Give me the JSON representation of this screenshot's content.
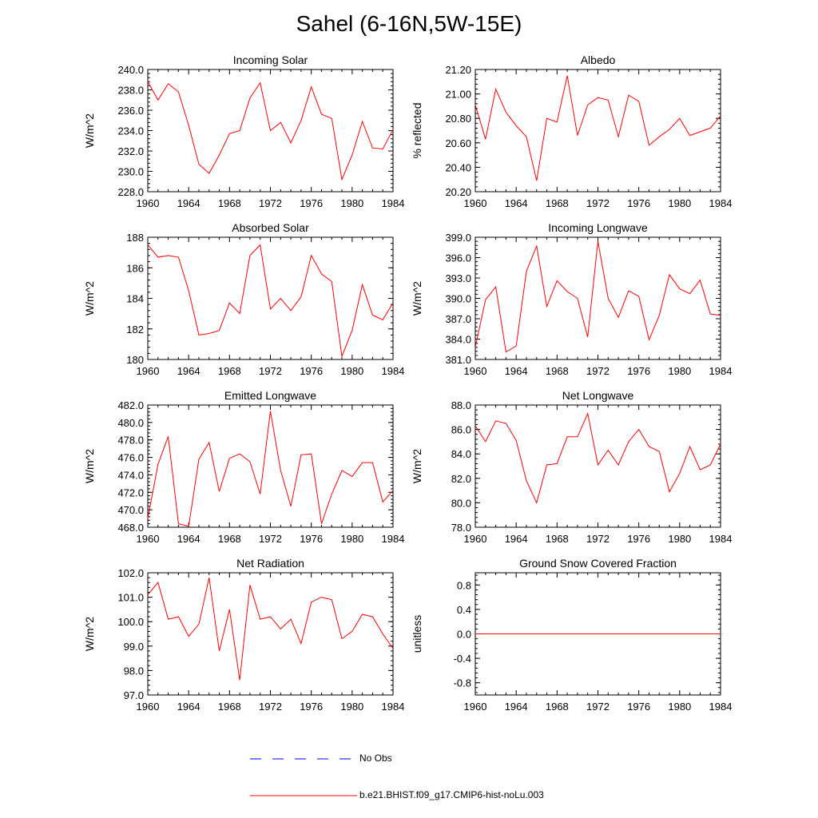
{
  "page_title": "Sahel (6-16N,5W-15E)",
  "legend": {
    "obs_label": "No Obs",
    "model_label": "b.e21.BHIST.f09_g17.CMIP6-hist-noLu.003",
    "obs_color": "#0000ff",
    "model_color": "#ff0000"
  },
  "chart_data": [
    {
      "type": "line",
      "title": "Incoming Solar",
      "ylabel": "W/m^2",
      "xlim": [
        1960,
        1984
      ],
      "ylim": [
        228,
        240
      ],
      "x_ticks": [
        "1960",
        "1964",
        "1968",
        "1972",
        "1976",
        "1980",
        "1984"
      ],
      "y_ticks": [
        "228.0",
        "230.0",
        "232.0",
        "234.0",
        "236.0",
        "238.0",
        "240.0"
      ],
      "series": [
        {
          "name": "b.e21.BHIST.f09_g17.CMIP6-hist-noLu.003",
          "x": [
            1960,
            1961,
            1962,
            1963,
            1964,
            1965,
            1966,
            1967,
            1968,
            1969,
            1970,
            1971,
            1972,
            1973,
            1974,
            1975,
            1976,
            1977,
            1978,
            1979,
            1980,
            1981,
            1982,
            1983,
            1984
          ],
          "values": [
            238.8,
            237.0,
            238.6,
            237.8,
            234.5,
            230.7,
            229.8,
            231.6,
            233.7,
            234.0,
            237.2,
            238.7,
            234.0,
            234.8,
            232.8,
            235.0,
            238.3,
            235.6,
            235.2,
            229.2,
            231.6,
            234.9,
            232.3,
            232.2,
            234.1
          ]
        }
      ]
    },
    {
      "type": "line",
      "title": "Albedo",
      "ylabel": "% reflected",
      "xlim": [
        1960,
        1984
      ],
      "ylim": [
        20.2,
        21.2
      ],
      "x_ticks": [
        "1960",
        "1964",
        "1968",
        "1972",
        "1976",
        "1980",
        "1984"
      ],
      "y_ticks": [
        "20.20",
        "20.40",
        "20.60",
        "20.80",
        "21.00",
        "21.20"
      ],
      "series": [
        {
          "name": "b.e21.BHIST.f09_g17.CMIP6-hist-noLu.003",
          "x": [
            1960,
            1961,
            1962,
            1963,
            1964,
            1965,
            1966,
            1967,
            1968,
            1969,
            1970,
            1971,
            1972,
            1973,
            1974,
            1975,
            1976,
            1977,
            1978,
            1979,
            1980,
            1981,
            1982,
            1983,
            1984
          ],
          "values": [
            20.91,
            20.63,
            21.04,
            20.85,
            20.74,
            20.65,
            20.29,
            20.8,
            20.77,
            21.15,
            20.66,
            20.91,
            20.97,
            20.95,
            20.65,
            20.99,
            20.94,
            20.58,
            20.65,
            20.71,
            20.8,
            20.66,
            20.69,
            20.72,
            20.82
          ]
        }
      ]
    },
    {
      "type": "line",
      "title": "Absorbed Solar",
      "ylabel": "W/m^2",
      "xlim": [
        1960,
        1984
      ],
      "ylim": [
        180,
        188
      ],
      "x_ticks": [
        "1960",
        "1964",
        "1968",
        "1972",
        "1976",
        "1980",
        "1984"
      ],
      "y_ticks": [
        "180",
        "182",
        "184",
        "186",
        "188"
      ],
      "series": [
        {
          "name": "b.e21.BHIST.f09_g17.CMIP6-hist-noLu.003",
          "x": [
            1960,
            1961,
            1962,
            1963,
            1964,
            1965,
            1966,
            1967,
            1968,
            1969,
            1970,
            1971,
            1972,
            1973,
            1974,
            1975,
            1976,
            1977,
            1978,
            1979,
            1980,
            1981,
            1982,
            1983,
            1984
          ],
          "values": [
            187.5,
            186.7,
            186.8,
            186.7,
            184.5,
            181.6,
            181.7,
            181.9,
            183.7,
            183.0,
            186.8,
            187.5,
            183.3,
            184.0,
            183.2,
            184.1,
            186.8,
            185.6,
            185.1,
            180.2,
            181.9,
            184.9,
            182.9,
            182.6,
            183.7
          ]
        }
      ]
    },
    {
      "type": "line",
      "title": "Incoming Longwave",
      "ylabel": "W/m^2",
      "xlim": [
        1960,
        1984
      ],
      "ylim": [
        381,
        399
      ],
      "x_ticks": [
        "1960",
        "1964",
        "1968",
        "1972",
        "1976",
        "1980",
        "1984"
      ],
      "y_ticks": [
        "381.0",
        "384.0",
        "387.0",
        "390.0",
        "393.0",
        "396.0",
        "399.0"
      ],
      "series": [
        {
          "name": "b.e21.BHIST.f09_g17.CMIP6-hist-noLu.003",
          "x": [
            1960,
            1961,
            1962,
            1963,
            1964,
            1965,
            1966,
            1967,
            1968,
            1969,
            1970,
            1971,
            1972,
            1973,
            1974,
            1975,
            1976,
            1977,
            1978,
            1979,
            1980,
            1981,
            1982,
            1983,
            1984
          ],
          "values": [
            382.8,
            389.8,
            391.7,
            382.1,
            383.0,
            394.0,
            397.7,
            388.8,
            392.6,
            391.0,
            390.0,
            384.3,
            398.4,
            390.0,
            387.2,
            391.1,
            390.3,
            383.9,
            387.5,
            393.5,
            391.4,
            390.7,
            392.7,
            387.7,
            387.5
          ]
        }
      ]
    },
    {
      "type": "line",
      "title": "Emitted Longwave",
      "ylabel": "W/m^2",
      "xlim": [
        1960,
        1984
      ],
      "ylim": [
        468,
        482
      ],
      "x_ticks": [
        "1960",
        "1964",
        "1968",
        "1972",
        "1976",
        "1980",
        "1984"
      ],
      "y_ticks": [
        "468.0",
        "470.0",
        "472.0",
        "474.0",
        "476.0",
        "478.0",
        "480.0",
        "482.0"
      ],
      "series": [
        {
          "name": "b.e21.BHIST.f09_g17.CMIP6-hist-noLu.003",
          "x": [
            1960,
            1961,
            1962,
            1963,
            1964,
            1965,
            1966,
            1967,
            1968,
            1969,
            1970,
            1971,
            1972,
            1973,
            1974,
            1975,
            1976,
            1977,
            1978,
            1979,
            1980,
            1981,
            1982,
            1983,
            1984
          ],
          "values": [
            469.0,
            475.2,
            478.4,
            468.4,
            468.1,
            475.8,
            477.7,
            472.1,
            475.9,
            476.4,
            475.5,
            471.8,
            481.3,
            474.5,
            470.4,
            476.3,
            476.4,
            468.4,
            471.8,
            474.5,
            473.8,
            475.4,
            475.4,
            470.9,
            472.2
          ]
        }
      ]
    },
    {
      "type": "line",
      "title": "Net Longwave",
      "ylabel": "W/m^2",
      "xlim": [
        1960,
        1984
      ],
      "ylim": [
        78,
        88
      ],
      "x_ticks": [
        "1960",
        "1964",
        "1968",
        "1972",
        "1976",
        "1980",
        "1984"
      ],
      "y_ticks": [
        "78.0",
        "80.0",
        "82.0",
        "84.0",
        "86.0",
        "88.0"
      ],
      "series": [
        {
          "name": "b.e21.BHIST.f09_g17.CMIP6-hist-noLu.003",
          "x": [
            1960,
            1961,
            1962,
            1963,
            1964,
            1965,
            1966,
            1967,
            1968,
            1969,
            1970,
            1971,
            1972,
            1973,
            1974,
            1975,
            1976,
            1977,
            1978,
            1979,
            1980,
            1981,
            1982,
            1983,
            1984
          ],
          "values": [
            86.3,
            85.0,
            86.7,
            86.5,
            85.1,
            81.8,
            80.0,
            83.1,
            83.2,
            85.4,
            85.4,
            87.3,
            83.1,
            84.3,
            83.1,
            85.0,
            86.0,
            84.6,
            84.2,
            80.9,
            82.4,
            84.6,
            82.7,
            83.1,
            84.8
          ]
        }
      ]
    },
    {
      "type": "line",
      "title": "Net Radiation",
      "ylabel": "W/m^2",
      "xlim": [
        1960,
        1984
      ],
      "ylim": [
        97,
        102
      ],
      "x_ticks": [
        "1960",
        "1964",
        "1968",
        "1972",
        "1976",
        "1980",
        "1984"
      ],
      "y_ticks": [
        "97.0",
        "98.0",
        "99.0",
        "100.0",
        "101.0",
        "102.0"
      ],
      "series": [
        {
          "name": "b.e21.BHIST.f09_g17.CMIP6-hist-noLu.003",
          "x": [
            1960,
            1961,
            1962,
            1963,
            1964,
            1965,
            1966,
            1967,
            1968,
            1969,
            1970,
            1971,
            1972,
            1973,
            1974,
            1975,
            1976,
            1977,
            1978,
            1979,
            1980,
            1981,
            1982,
            1983,
            1984
          ],
          "values": [
            101.1,
            101.6,
            100.1,
            100.2,
            99.4,
            99.9,
            101.8,
            98.8,
            100.5,
            97.6,
            101.5,
            100.1,
            100.2,
            99.7,
            100.1,
            99.1,
            100.8,
            101.0,
            100.9,
            99.3,
            99.6,
            100.3,
            100.2,
            99.5,
            98.9
          ]
        }
      ]
    },
    {
      "type": "line",
      "title": "Ground Snow Covered Fraction",
      "ylabel": "unitless",
      "xlim": [
        1960,
        1984
      ],
      "ylim": [
        -1.0,
        1.0
      ],
      "x_ticks": [
        "1960",
        "1964",
        "1968",
        "1972",
        "1976",
        "1980",
        "1984"
      ],
      "y_ticks": [
        "-0.8",
        "-0.4",
        "0.0",
        "0.4",
        "0.8"
      ],
      "y_tick_values": [
        -0.8,
        -0.4,
        0.0,
        0.4,
        0.8
      ],
      "series": [
        {
          "name": "b.e21.BHIST.f09_g17.CMIP6-hist-noLu.003",
          "x": [
            1960,
            1961,
            1962,
            1963,
            1964,
            1965,
            1966,
            1967,
            1968,
            1969,
            1970,
            1971,
            1972,
            1973,
            1974,
            1975,
            1976,
            1977,
            1978,
            1979,
            1980,
            1981,
            1982,
            1983,
            1984
          ],
          "values": [
            0,
            0,
            0,
            0,
            0,
            0,
            0,
            0,
            0,
            0,
            0,
            0,
            0,
            0,
            0,
            0,
            0,
            0,
            0,
            0,
            0,
            0,
            0,
            0,
            0
          ]
        }
      ]
    }
  ]
}
